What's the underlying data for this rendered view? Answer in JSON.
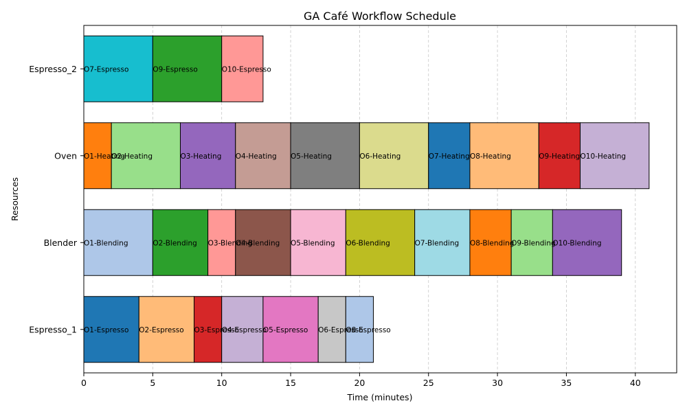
{
  "chart_data": {
    "type": "gantt",
    "title": "GA Café Workflow Schedule",
    "xlabel": "Time (minutes)",
    "ylabel": "Resources",
    "xlim": [
      0,
      43
    ],
    "xticks": [
      "0",
      "5",
      "10",
      "15",
      "20",
      "25",
      "30",
      "35",
      "40"
    ],
    "grid": "x-dashed",
    "resources": [
      "Espresso_1",
      "Blender",
      "Oven",
      "Espresso_2"
    ],
    "tasks": [
      {
        "resource": "Espresso_1",
        "label": "O1-Espresso",
        "start": 0,
        "end": 4,
        "color": "#1f77b4"
      },
      {
        "resource": "Espresso_1",
        "label": "O2-Espresso",
        "start": 4,
        "end": 8,
        "color": "#ffbb78"
      },
      {
        "resource": "Espresso_1",
        "label": "O3-Espresso",
        "start": 8,
        "end": 10,
        "color": "#d62728"
      },
      {
        "resource": "Espresso_1",
        "label": "O4-Espresso",
        "start": 10,
        "end": 13,
        "color": "#c5b0d5"
      },
      {
        "resource": "Espresso_1",
        "label": "O5-Espresso",
        "start": 13,
        "end": 17,
        "color": "#e377c2"
      },
      {
        "resource": "Espresso_1",
        "label": "O6-Espresso",
        "start": 17,
        "end": 19,
        "color": "#c7c7c7"
      },
      {
        "resource": "Espresso_1",
        "label": "O8-Espresso",
        "start": 19,
        "end": 21,
        "color": "#aec7e8"
      },
      {
        "resource": "Blender",
        "label": "O1-Blending",
        "start": 0,
        "end": 5,
        "color": "#aec7e8"
      },
      {
        "resource": "Blender",
        "label": "O2-Blending",
        "start": 5,
        "end": 9,
        "color": "#2ca02c"
      },
      {
        "resource": "Blender",
        "label": "O3-Blending",
        "start": 9,
        "end": 11,
        "color": "#ff9896"
      },
      {
        "resource": "Blender",
        "label": "O4-Blending",
        "start": 11,
        "end": 15,
        "color": "#8c564b"
      },
      {
        "resource": "Blender",
        "label": "O5-Blending",
        "start": 15,
        "end": 19,
        "color": "#f7b6d2"
      },
      {
        "resource": "Blender",
        "label": "O6-Blending",
        "start": 19,
        "end": 24,
        "color": "#bcbd22"
      },
      {
        "resource": "Blender",
        "label": "O7-Blending",
        "start": 24,
        "end": 28,
        "color": "#9edae5"
      },
      {
        "resource": "Blender",
        "label": "O8-Blending",
        "start": 28,
        "end": 31,
        "color": "#ff7f0e"
      },
      {
        "resource": "Blender",
        "label": "O9-Blending",
        "start": 31,
        "end": 34,
        "color": "#98df8a"
      },
      {
        "resource": "Blender",
        "label": "O10-Blending",
        "start": 34,
        "end": 39,
        "color": "#9467bd"
      },
      {
        "resource": "Oven",
        "label": "O1-Heating",
        "start": 0,
        "end": 2,
        "color": "#ff7f0e"
      },
      {
        "resource": "Oven",
        "label": "O2-Heating",
        "start": 2,
        "end": 7,
        "color": "#98df8a"
      },
      {
        "resource": "Oven",
        "label": "O3-Heating",
        "start": 7,
        "end": 11,
        "color": "#9467bd"
      },
      {
        "resource": "Oven",
        "label": "O4-Heating",
        "start": 11,
        "end": 15,
        "color": "#c49c94"
      },
      {
        "resource": "Oven",
        "label": "O5-Heating",
        "start": 15,
        "end": 20,
        "color": "#7f7f7f"
      },
      {
        "resource": "Oven",
        "label": "O6-Heating",
        "start": 20,
        "end": 25,
        "color": "#dbdb8d"
      },
      {
        "resource": "Oven",
        "label": "O7-Heating",
        "start": 25,
        "end": 28,
        "color": "#1f77b4"
      },
      {
        "resource": "Oven",
        "label": "O8-Heating",
        "start": 28,
        "end": 33,
        "color": "#ffbb78"
      },
      {
        "resource": "Oven",
        "label": "O9-Heating",
        "start": 33,
        "end": 36,
        "color": "#d62728"
      },
      {
        "resource": "Oven",
        "label": "O10-Heating",
        "start": 36,
        "end": 41,
        "color": "#c5b0d5"
      },
      {
        "resource": "Espresso_2",
        "label": "O7-Espresso",
        "start": 0,
        "end": 5,
        "color": "#17becf"
      },
      {
        "resource": "Espresso_2",
        "label": "O9-Espresso",
        "start": 5,
        "end": 10,
        "color": "#2ca02c"
      },
      {
        "resource": "Espresso_2",
        "label": "O10-Espresso",
        "start": 10,
        "end": 13,
        "color": "#ff9896"
      }
    ]
  }
}
